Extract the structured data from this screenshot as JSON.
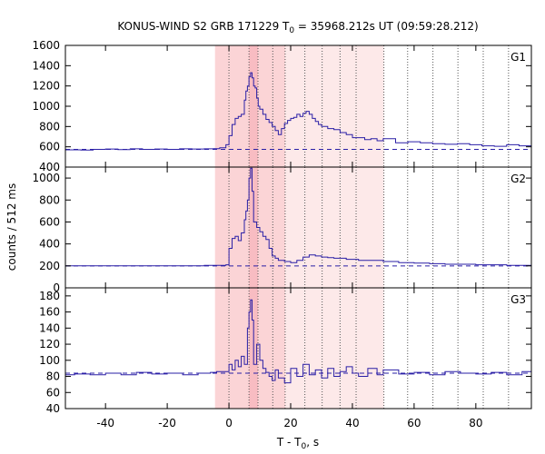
{
  "chart_data": {
    "type": "line",
    "title": {
      "main": "KONUS-WIND S2 GRB 171229 T",
      "sub": "0",
      "rest": " = 35968.212s UT (09:59:28.212)"
    },
    "xlabel": {
      "main": "T - T",
      "sub": "0",
      "rest": ", s"
    },
    "ylabel": "counts / 512 ms",
    "xlim": [
      -53,
      98
    ],
    "xticks": [
      -40,
      -20,
      0,
      20,
      40,
      60,
      80
    ],
    "shade_light": [
      -4.5,
      50.2
    ],
    "shade_mid": [
      -4.5,
      18.2
    ],
    "shade_dark": [
      6.5,
      9.4
    ],
    "vlines": [
      0,
      6.5,
      9.4,
      14.2,
      18.2,
      24.6,
      30.2,
      36.0,
      41.2,
      50.2,
      57.9,
      66.1,
      74.2,
      82.4,
      90.6
    ],
    "colors": {
      "line": "#2a1fa6",
      "bg_light": "#fde9e9",
      "bg_mid": "#fbd4d6",
      "bg_dark": "#f8bcc2"
    },
    "panels": [
      {
        "name": "G1",
        "ylim": [
          400,
          1600
        ],
        "yticks": [
          400,
          600,
          800,
          1000,
          1200,
          1400,
          1600
        ],
        "background": 575,
        "points": [
          [
            -53,
            570
          ],
          [
            -48,
            568
          ],
          [
            -44,
            575
          ],
          [
            -40,
            578
          ],
          [
            -36,
            572
          ],
          [
            -32,
            580
          ],
          [
            -28,
            575
          ],
          [
            -24,
            578
          ],
          [
            -20,
            575
          ],
          [
            -16,
            580
          ],
          [
            -12,
            578
          ],
          [
            -8,
            580
          ],
          [
            -5,
            582
          ],
          [
            -3,
            590
          ],
          [
            -1,
            620
          ],
          [
            0,
            710
          ],
          [
            1,
            820
          ],
          [
            2,
            880
          ],
          [
            3,
            900
          ],
          [
            4,
            920
          ],
          [
            5,
            1060
          ],
          [
            5.5,
            1150
          ],
          [
            6,
            1200
          ],
          [
            6.5,
            1290
          ],
          [
            7,
            1330
          ],
          [
            7.5,
            1280
          ],
          [
            8,
            1200
          ],
          [
            8.5,
            1180
          ],
          [
            9,
            1080
          ],
          [
            9.5,
            1000
          ],
          [
            10,
            970
          ],
          [
            11,
            920
          ],
          [
            12,
            870
          ],
          [
            13,
            840
          ],
          [
            14,
            800
          ],
          [
            15,
            760
          ],
          [
            16,
            720
          ],
          [
            17,
            780
          ],
          [
            18,
            830
          ],
          [
            19,
            860
          ],
          [
            20,
            880
          ],
          [
            21,
            890
          ],
          [
            22,
            920
          ],
          [
            23,
            900
          ],
          [
            24,
            930
          ],
          [
            25,
            950
          ],
          [
            26,
            920
          ],
          [
            27,
            880
          ],
          [
            28,
            850
          ],
          [
            29,
            820
          ],
          [
            30,
            800
          ],
          [
            32,
            780
          ],
          [
            34,
            770
          ],
          [
            36,
            740
          ],
          [
            38,
            720
          ],
          [
            40,
            690
          ],
          [
            42,
            690
          ],
          [
            44,
            670
          ],
          [
            46,
            680
          ],
          [
            48,
            660
          ],
          [
            50,
            680
          ],
          [
            54,
            640
          ],
          [
            58,
            650
          ],
          [
            62,
            640
          ],
          [
            66,
            630
          ],
          [
            70,
            625
          ],
          [
            74,
            630
          ],
          [
            78,
            620
          ],
          [
            82,
            610
          ],
          [
            86,
            605
          ],
          [
            90,
            620
          ],
          [
            94,
            610
          ],
          [
            98,
            615
          ]
        ]
      },
      {
        "name": "G2",
        "ylim": [
          0,
          1100
        ],
        "yticks": [
          0,
          200,
          400,
          600,
          800,
          1000
        ],
        "background": 200,
        "points": [
          [
            -53,
            200
          ],
          [
            -45,
            200
          ],
          [
            -35,
            200
          ],
          [
            -25,
            200
          ],
          [
            -15,
            200
          ],
          [
            -8,
            205
          ],
          [
            -5,
            205
          ],
          [
            -2,
            205
          ],
          [
            -1,
            210
          ],
          [
            0,
            360
          ],
          [
            1,
            450
          ],
          [
            2,
            470
          ],
          [
            3,
            430
          ],
          [
            4,
            500
          ],
          [
            5,
            620
          ],
          [
            5.5,
            700
          ],
          [
            6,
            800
          ],
          [
            6.5,
            1000
          ],
          [
            7,
            1090
          ],
          [
            7.5,
            880
          ],
          [
            8,
            600
          ],
          [
            9,
            550
          ],
          [
            10,
            510
          ],
          [
            11,
            470
          ],
          [
            12,
            440
          ],
          [
            13,
            360
          ],
          [
            14,
            290
          ],
          [
            15,
            270
          ],
          [
            16,
            250
          ],
          [
            18,
            240
          ],
          [
            20,
            230
          ],
          [
            22,
            250
          ],
          [
            24,
            280
          ],
          [
            26,
            300
          ],
          [
            28,
            290
          ],
          [
            30,
            280
          ],
          [
            32,
            275
          ],
          [
            34,
            270
          ],
          [
            38,
            260
          ],
          [
            42,
            250
          ],
          [
            46,
            250
          ],
          [
            50,
            240
          ],
          [
            55,
            230
          ],
          [
            60,
            225
          ],
          [
            65,
            220
          ],
          [
            70,
            215
          ],
          [
            80,
            210
          ],
          [
            90,
            205
          ],
          [
            98,
            205
          ]
        ]
      },
      {
        "name": "G3",
        "ylim": [
          40,
          190
        ],
        "yticks": [
          40,
          60,
          80,
          100,
          120,
          140,
          160,
          180
        ],
        "background": 84,
        "points": [
          [
            -53,
            82
          ],
          [
            -50,
            83
          ],
          [
            -45,
            82
          ],
          [
            -40,
            84
          ],
          [
            -35,
            82
          ],
          [
            -30,
            85
          ],
          [
            -25,
            83
          ],
          [
            -20,
            84
          ],
          [
            -15,
            82
          ],
          [
            -10,
            84
          ],
          [
            -6,
            85
          ],
          [
            -4,
            86
          ],
          [
            -2,
            86
          ],
          [
            0,
            95
          ],
          [
            1,
            88
          ],
          [
            2,
            100
          ],
          [
            3,
            92
          ],
          [
            4,
            105
          ],
          [
            5,
            95
          ],
          [
            6,
            140
          ],
          [
            6.5,
            160
          ],
          [
            7,
            175
          ],
          [
            7.5,
            150
          ],
          [
            8,
            95
          ],
          [
            9,
            120
          ],
          [
            10,
            100
          ],
          [
            11,
            90
          ],
          [
            12,
            85
          ],
          [
            13,
            80
          ],
          [
            14,
            75
          ],
          [
            15,
            88
          ],
          [
            16,
            78
          ],
          [
            18,
            72
          ],
          [
            20,
            90
          ],
          [
            22,
            80
          ],
          [
            24,
            95
          ],
          [
            26,
            82
          ],
          [
            28,
            88
          ],
          [
            30,
            78
          ],
          [
            32,
            90
          ],
          [
            34,
            80
          ],
          [
            36,
            86
          ],
          [
            38,
            92
          ],
          [
            40,
            84
          ],
          [
            42,
            80
          ],
          [
            45,
            90
          ],
          [
            48,
            82
          ],
          [
            50,
            88
          ],
          [
            55,
            83
          ],
          [
            60,
            85
          ],
          [
            65,
            82
          ],
          [
            70,
            86
          ],
          [
            75,
            84
          ],
          [
            80,
            83
          ],
          [
            85,
            85
          ],
          [
            90,
            82
          ],
          [
            95,
            86
          ],
          [
            98,
            84
          ]
        ]
      }
    ]
  }
}
